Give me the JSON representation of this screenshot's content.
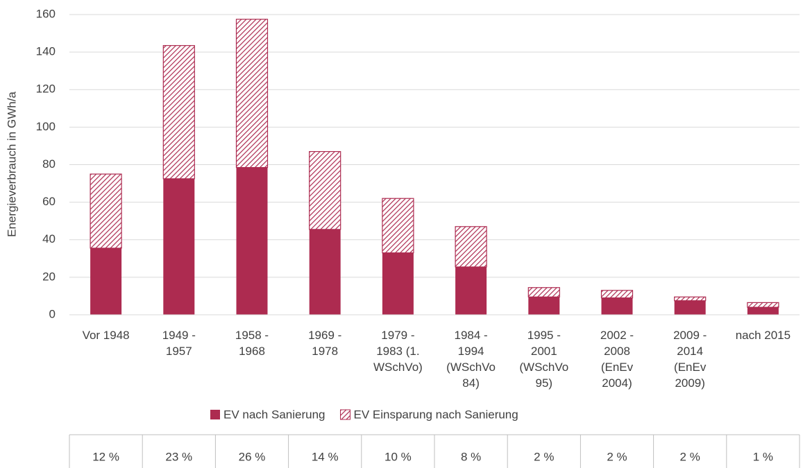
{
  "chart_data": {
    "type": "stacked_bar",
    "y_label": "Energieverbrauch in GWh/a",
    "categories": [
      "Vor 1948",
      "1949 - 1957",
      "1958 - 1968",
      "1969 - 1978",
      "1979 - 1983 (1. WSchVo)",
      "1984 - 1994 (WSchVo 84)",
      "1995 - 2001 (WSchVo 95)",
      "2002 - 2008 (EnEv 2004)",
      "2009 - 2014 (EnEv 2009)",
      "nach 2015"
    ],
    "series": [
      {
        "name": "EV nach Sanierung",
        "color": "#ad2b50",
        "fill": "solid",
        "values": [
          35.5,
          72.5,
          78.5,
          45.5,
          33,
          25.5,
          9.5,
          9,
          7.5,
          4
        ]
      },
      {
        "name": "EV Einsparung nach Sanierung",
        "color": "#ad2b50",
        "fill": "hatch",
        "values": [
          39.5,
          71,
          79,
          41.5,
          29,
          21.5,
          5,
          4,
          2,
          2.5
        ]
      }
    ],
    "ylim": [
      0,
      160
    ],
    "yticks": [
      0,
      20,
      40,
      60,
      80,
      100,
      120,
      140,
      160
    ],
    "grid": true,
    "legend": "bottom"
  },
  "table": {
    "cells": [
      "12 %",
      "23 %",
      "26 %",
      "14 %",
      "10 %",
      "8 %",
      "2 %",
      "2 %",
      "2 %",
      "1 %"
    ]
  }
}
